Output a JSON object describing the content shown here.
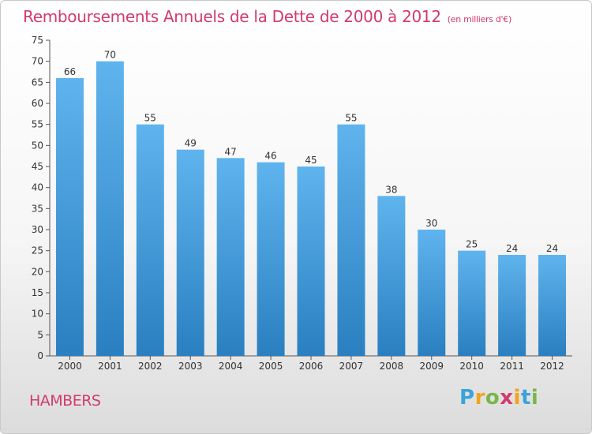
{
  "title": "Remboursements Annuels de la Dette de 2000 à 2012",
  "unit": "(en milliers d'€)",
  "commune": "HAMBERS",
  "brand": {
    "letters": [
      "P",
      "r",
      "o",
      "x",
      "i",
      "t",
      "i"
    ],
    "colors": [
      "#3aa3d9",
      "#f2a31c",
      "#7ab648",
      "#d23a6e",
      "#f2a31c",
      "#3aa3d9",
      "#7ab648"
    ]
  },
  "colors": {
    "accent": "#d23a6e",
    "bar_light": "#5fb4ee",
    "bar_dark": "#2a7fc0",
    "axis": "#555555"
  },
  "chart_data": {
    "type": "bar",
    "categories": [
      "2000",
      "2001",
      "2002",
      "2003",
      "2004",
      "2005",
      "2006",
      "2007",
      "2008",
      "2009",
      "2010",
      "2011",
      "2012"
    ],
    "values": [
      66,
      70,
      55,
      49,
      47,
      46,
      45,
      55,
      38,
      30,
      25,
      24,
      24
    ],
    "ylim": [
      0,
      75
    ],
    "yticks": [
      0,
      5,
      10,
      15,
      20,
      25,
      30,
      35,
      40,
      45,
      50,
      55,
      60,
      65,
      70,
      75
    ],
    "grid": false,
    "legend": "none"
  }
}
